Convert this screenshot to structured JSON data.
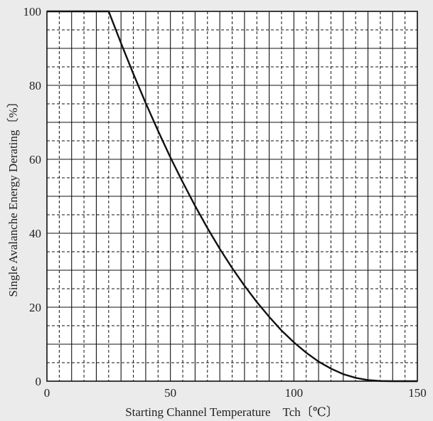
{
  "chart_data": {
    "type": "line",
    "title": "",
    "xlabel": "Starting Channel Temperature　Tch〔℃〕",
    "ylabel": "Single Avalanche Energy Derating〔%〕",
    "xlim": [
      0,
      150
    ],
    "ylim": [
      0,
      100
    ],
    "x_ticks": [
      0,
      50,
      100,
      150
    ],
    "y_ticks": [
      0,
      20,
      40,
      60,
      80,
      100
    ],
    "grid": true,
    "grid_major_step": {
      "x": 10,
      "y": 10
    },
    "grid_minor_step": {
      "x": 5,
      "y": 5
    },
    "series": [
      {
        "x": [
          0,
          25,
          30,
          35,
          40,
          45,
          50,
          55,
          60,
          65,
          70,
          75,
          80,
          85,
          90,
          95,
          100,
          105,
          110,
          115,
          120,
          125,
          130,
          135,
          140,
          145,
          150
        ],
        "y": [
          100,
          100,
          91.4,
          83.1,
          75.2,
          67.7,
          60.5,
          53.8,
          47.4,
          41.4,
          35.8,
          30.6,
          25.8,
          21.4,
          17.4,
          13.7,
          10.5,
          7.7,
          5.3,
          3.4,
          1.9,
          0.9,
          0.3,
          0.05,
          0,
          0,
          0
        ]
      }
    ],
    "colors": {
      "background": "#ebebeb",
      "plot_area": "#ffffff",
      "line": "#111111",
      "grid": "#111111"
    }
  }
}
